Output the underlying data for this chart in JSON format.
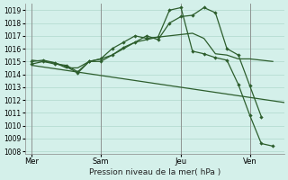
{
  "title": "Pression niveau de la mer( hPa )",
  "bg_color": "#d4f0ea",
  "grid_color": "#b0d8cc",
  "line_color": "#2d5e2d",
  "ylim_min": 1007.8,
  "ylim_max": 1019.5,
  "yticks": [
    1008,
    1009,
    1010,
    1011,
    1012,
    1013,
    1014,
    1015,
    1016,
    1017,
    1018,
    1019
  ],
  "xtick_labels": [
    "Mer",
    "Sam",
    "Jeu",
    "Ven"
  ],
  "vline_positions": [
    0,
    3.0,
    6.5,
    9.5
  ],
  "xlim_min": -0.3,
  "xlim_max": 11.0,
  "line1_x": [
    0,
    11.0
  ],
  "line1_y": [
    1014.7,
    1011.8
  ],
  "line2_x": [
    0,
    1.0,
    1.5,
    2.0,
    2.5,
    3.0,
    3.5,
    4.0,
    4.5,
    5.0,
    5.5,
    6.0,
    6.5,
    7.0,
    7.5,
    8.0,
    8.5,
    9.0,
    9.5,
    10.0,
    10.5
  ],
  "line2_y": [
    1015.1,
    1014.9,
    1014.5,
    1014.5,
    1015.0,
    1015.2,
    1015.5,
    1016.0,
    1016.5,
    1016.7,
    1016.9,
    1017.0,
    1017.1,
    1017.2,
    1016.8,
    1015.6,
    1015.5,
    1015.2,
    1015.2,
    1015.1,
    1015.0
  ],
  "line3_x": [
    0,
    0.5,
    1.0,
    1.5,
    2.0,
    2.5,
    3.0,
    3.5,
    4.0,
    4.5,
    5.0,
    5.5,
    6.0,
    6.5,
    7.0,
    7.5,
    8.0,
    8.5,
    9.0,
    9.5,
    10.0
  ],
  "line3_y": [
    1015.0,
    1015.1,
    1014.9,
    1014.6,
    1014.1,
    1015.0,
    1015.0,
    1015.5,
    1016.1,
    1016.5,
    1017.0,
    1016.7,
    1018.0,
    1018.5,
    1018.6,
    1019.2,
    1018.8,
    1016.0,
    1015.5,
    1013.1,
    1010.7
  ],
  "line4_x": [
    0,
    0.5,
    1.0,
    1.5,
    2.0,
    2.5,
    3.0,
    3.5,
    4.0,
    4.5,
    5.0,
    5.5,
    6.0,
    6.5,
    7.0,
    7.5,
    8.0,
    8.5,
    9.0,
    9.5,
    10.0,
    10.5
  ],
  "line4_y": [
    1014.8,
    1015.0,
    1014.8,
    1014.7,
    1014.2,
    1015.0,
    1015.2,
    1016.0,
    1016.5,
    1017.0,
    1016.8,
    1016.9,
    1019.0,
    1019.2,
    1015.8,
    1015.6,
    1015.3,
    1015.1,
    1013.2,
    1010.8,
    1008.6,
    1008.4
  ],
  "xtick_x": [
    0,
    3.0,
    6.5,
    9.5
  ]
}
